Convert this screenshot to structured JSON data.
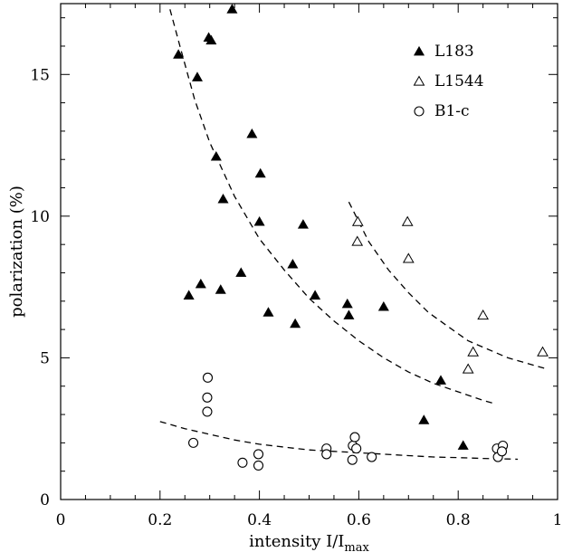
{
  "chart_data": {
    "type": "scatter",
    "xlabel": "intensity I/I",
    "xlabel_sub": "max",
    "ylabel": "polarization (%)",
    "xlim": [
      0,
      1
    ],
    "ylim": [
      0,
      17.5
    ],
    "x_ticks": [
      0,
      0.2,
      0.4,
      0.6,
      0.8,
      1
    ],
    "x_tick_labels": [
      "0",
      "0.2",
      "0.4",
      "0.6",
      "0.8",
      "1"
    ],
    "y_ticks": [
      0,
      5,
      10,
      15
    ],
    "y_tick_labels": [
      "0",
      "5",
      "10",
      "15"
    ],
    "grid": false,
    "legend_position": "top-right",
    "series": [
      {
        "name": "L183",
        "marker": "filled-triangle",
        "points": [
          [
            0.237,
            15.7
          ],
          [
            0.275,
            14.9
          ],
          [
            0.298,
            16.3
          ],
          [
            0.303,
            16.2
          ],
          [
            0.345,
            17.3
          ],
          [
            0.313,
            12.1
          ],
          [
            0.327,
            10.6
          ],
          [
            0.385,
            12.9
          ],
          [
            0.402,
            11.5
          ],
          [
            0.4,
            9.8
          ],
          [
            0.258,
            7.2
          ],
          [
            0.282,
            7.6
          ],
          [
            0.322,
            7.4
          ],
          [
            0.363,
            8.0
          ],
          [
            0.418,
            6.6
          ],
          [
            0.467,
            8.3
          ],
          [
            0.488,
            9.7
          ],
          [
            0.472,
            6.2
          ],
          [
            0.512,
            7.2
          ],
          [
            0.577,
            6.9
          ],
          [
            0.58,
            6.5
          ],
          [
            0.65,
            6.8
          ],
          [
            0.765,
            4.2
          ],
          [
            0.731,
            2.8
          ],
          [
            0.81,
            1.9
          ]
        ]
      },
      {
        "name": "L1544",
        "marker": "open-triangle",
        "points": [
          [
            0.598,
            9.8
          ],
          [
            0.597,
            9.1
          ],
          [
            0.698,
            9.8
          ],
          [
            0.7,
            8.5
          ],
          [
            0.85,
            6.5
          ],
          [
            0.83,
            5.2
          ],
          [
            0.82,
            4.6
          ],
          [
            0.97,
            5.2
          ]
        ]
      },
      {
        "name": "B1-c",
        "marker": "open-circle",
        "points": [
          [
            0.296,
            4.3
          ],
          [
            0.295,
            3.6
          ],
          [
            0.295,
            3.1
          ],
          [
            0.267,
            2.0
          ],
          [
            0.366,
            1.3
          ],
          [
            0.398,
            1.6
          ],
          [
            0.398,
            1.2
          ],
          [
            0.535,
            1.8
          ],
          [
            0.535,
            1.6
          ],
          [
            0.588,
            1.9
          ],
          [
            0.592,
            2.2
          ],
          [
            0.587,
            1.4
          ],
          [
            0.595,
            1.8
          ],
          [
            0.626,
            1.5
          ],
          [
            0.878,
            1.8
          ],
          [
            0.89,
            1.9
          ],
          [
            0.88,
            1.5
          ],
          [
            0.888,
            1.7
          ]
        ]
      }
    ],
    "fit_curves": [
      {
        "points": [
          [
            0.22,
            17.3
          ],
          [
            0.24,
            16.0
          ],
          [
            0.27,
            14.1
          ],
          [
            0.3,
            12.6
          ],
          [
            0.35,
            10.7
          ],
          [
            0.4,
            9.2
          ],
          [
            0.45,
            8.1
          ],
          [
            0.5,
            7.1
          ],
          [
            0.55,
            6.3
          ],
          [
            0.6,
            5.6
          ],
          [
            0.65,
            5.0
          ],
          [
            0.7,
            4.5
          ],
          [
            0.75,
            4.1
          ],
          [
            0.8,
            3.8
          ],
          [
            0.85,
            3.5
          ],
          [
            0.87,
            3.4
          ]
        ]
      },
      {
        "points": [
          [
            0.58,
            10.5
          ],
          [
            0.62,
            9.1
          ],
          [
            0.66,
            8.1
          ],
          [
            0.7,
            7.3
          ],
          [
            0.74,
            6.6
          ],
          [
            0.78,
            6.1
          ],
          [
            0.82,
            5.6
          ],
          [
            0.86,
            5.3
          ],
          [
            0.9,
            5.0
          ],
          [
            0.94,
            4.8
          ],
          [
            0.98,
            4.6
          ]
        ]
      },
      {
        "points": [
          [
            0.2,
            2.75
          ],
          [
            0.25,
            2.5
          ],
          [
            0.3,
            2.3
          ],
          [
            0.35,
            2.1
          ],
          [
            0.4,
            1.95
          ],
          [
            0.45,
            1.85
          ],
          [
            0.5,
            1.75
          ],
          [
            0.55,
            1.7
          ],
          [
            0.6,
            1.65
          ],
          [
            0.65,
            1.6
          ],
          [
            0.7,
            1.55
          ],
          [
            0.75,
            1.5
          ],
          [
            0.8,
            1.48
          ],
          [
            0.85,
            1.45
          ],
          [
            0.9,
            1.43
          ],
          [
            0.92,
            1.42
          ]
        ]
      }
    ]
  }
}
